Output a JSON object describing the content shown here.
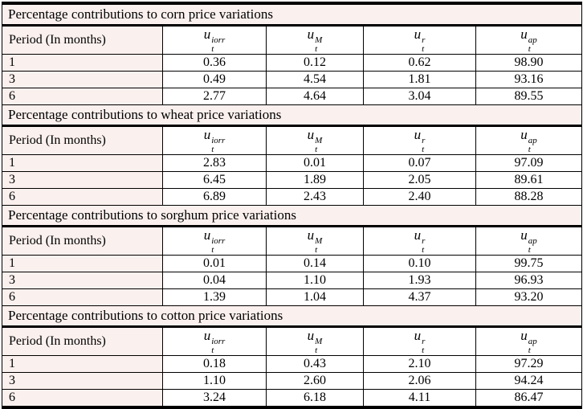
{
  "table": {
    "period_header": "Period (In months)",
    "columns": [
      {
        "base": "u",
        "sub": "t",
        "sup": "iorr"
      },
      {
        "base": "u",
        "sub": "t",
        "sup": "M"
      },
      {
        "base": "u",
        "sub": "t",
        "sup": "r"
      },
      {
        "base": "u",
        "sub": "t",
        "sup": "ap"
      }
    ],
    "sections": [
      {
        "title": "Percentage contributions to corn price variations",
        "rows": [
          {
            "period": "1",
            "values": [
              "0.36",
              "0.12",
              "0.62",
              "98.90"
            ]
          },
          {
            "period": "3",
            "values": [
              "0.49",
              "4.54",
              "1.81",
              "93.16"
            ]
          },
          {
            "period": "6",
            "values": [
              "2.77",
              "4.64",
              "3.04",
              "89.55"
            ]
          }
        ]
      },
      {
        "title": "Percentage contributions to wheat price variations",
        "rows": [
          {
            "period": "1",
            "values": [
              "2.83",
              "0.01",
              "0.07",
              "97.09"
            ]
          },
          {
            "period": "3",
            "values": [
              "6.45",
              "1.89",
              "2.05",
              "89.61"
            ]
          },
          {
            "period": "6",
            "values": [
              "6.89",
              "2.43",
              "2.40",
              "88.28"
            ]
          }
        ]
      },
      {
        "title": "Percentage contributions to sorghum price variations",
        "rows": [
          {
            "period": "1",
            "values": [
              "0.01",
              "0.14",
              "0.10",
              "99.75"
            ]
          },
          {
            "period": "3",
            "values": [
              "0.04",
              "1.10",
              "1.93",
              "96.93"
            ]
          },
          {
            "period": "6",
            "values": [
              "1.39",
              "1.04",
              "4.37",
              "93.20"
            ]
          }
        ]
      },
      {
        "title": "Percentage contributions to cotton price variations",
        "rows": [
          {
            "period": "1",
            "values": [
              "0.18",
              "0.43",
              "2.10",
              "97.29"
            ]
          },
          {
            "period": "3",
            "values": [
              "1.10",
              "2.60",
              "2.06",
              "94.24"
            ]
          },
          {
            "period": "6",
            "values": [
              "3.24",
              "6.18",
              "4.11",
              "86.47"
            ]
          }
        ]
      }
    ]
  },
  "colors": {
    "tint_background": "#faf0ee",
    "cell_background": "#ffffff",
    "border": "#000000",
    "text": "#000000"
  }
}
